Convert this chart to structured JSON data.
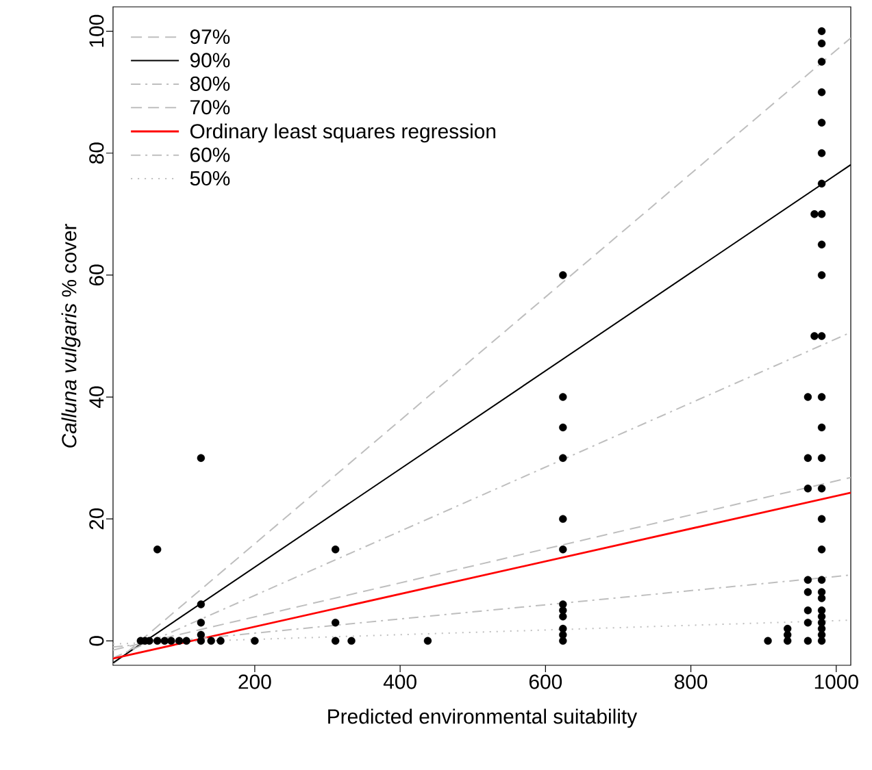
{
  "chart_data": {
    "type": "line",
    "xlabel": "Predicted environmental suitability",
    "ylabel": "*Calluna vulgaris* % cover",
    "xlim": [
      5,
      1020
    ],
    "ylim": [
      -4,
      104
    ],
    "xticks": [
      200,
      400,
      600,
      800,
      1000
    ],
    "yticks": [
      0,
      20,
      40,
      60,
      80,
      100
    ],
    "grid": false,
    "legend": "top left",
    "series": [
      {
        "name": "97%",
        "color": "#bebebe",
        "line_style": "dashed",
        "x": [
          5,
          1020
        ],
        "values": [
          -3.8,
          98.9
        ]
      },
      {
        "name": "90%",
        "color": "#000000",
        "line_style": "solid",
        "x": [
          5,
          1020
        ],
        "values": [
          -3.6,
          78.1
        ]
      },
      {
        "name": "80%",
        "color": "#bebebe",
        "line_style": "dashdot",
        "x": [
          5,
          1020
        ],
        "values": [
          -2.8,
          50.6
        ]
      },
      {
        "name": "70%",
        "color": "#bebebe",
        "line_style": "dashed",
        "x": [
          5,
          1020
        ],
        "values": [
          -1.5,
          26.8
        ]
      },
      {
        "name": "Ordinary least squares regression",
        "color": "#ff0000",
        "line_style": "solid",
        "x": [
          5,
          1020
        ],
        "values": [
          -2.9,
          24.3
        ]
      },
      {
        "name": "60%",
        "color": "#bebebe",
        "line_style": "dashdot",
        "x": [
          5,
          1020
        ],
        "values": [
          -1,
          10.8
        ]
      },
      {
        "name": "50%",
        "color": "#bebebe",
        "line_style": "dotted",
        "x": [
          5,
          1020
        ],
        "values": [
          -0.5,
          3.4
        ]
      },
      {
        "type": "scatter",
        "color": "#000000",
        "marker": "circle",
        "x": [
          43,
          49,
          55,
          66,
          76,
          85,
          96,
          106,
          126,
          140,
          153,
          200,
          311,
          333,
          438,
          66,
          126,
          126,
          126,
          126,
          311,
          311,
          624,
          624,
          624,
          624,
          624,
          624,
          624,
          624,
          624,
          624,
          624,
          624,
          906,
          933,
          933,
          933,
          961,
          961,
          961,
          961,
          961,
          961,
          961,
          961,
          970,
          970,
          980,
          980,
          980,
          980,
          980,
          980,
          980,
          980,
          980,
          980,
          980,
          980,
          980,
          980,
          980,
          980,
          980,
          980,
          980,
          980,
          980,
          980,
          980,
          980,
          980,
          980
        ],
        "values": [
          0,
          0,
          0,
          0,
          0,
          0,
          0,
          0,
          0,
          0,
          0,
          0,
          0,
          0,
          0,
          15,
          30,
          6,
          3,
          1,
          15,
          3,
          60,
          40,
          35,
          30,
          20,
          15,
          6,
          5,
          4,
          2,
          1,
          0,
          0,
          0,
          1,
          2,
          40,
          30,
          25,
          10,
          8,
          5,
          3,
          0,
          70,
          50,
          100,
          98,
          95,
          90,
          85,
          80,
          75,
          70,
          65,
          60,
          50,
          40,
          35,
          30,
          25,
          20,
          15,
          10,
          8,
          7,
          5,
          4,
          3,
          2,
          1,
          0
        ]
      }
    ]
  }
}
